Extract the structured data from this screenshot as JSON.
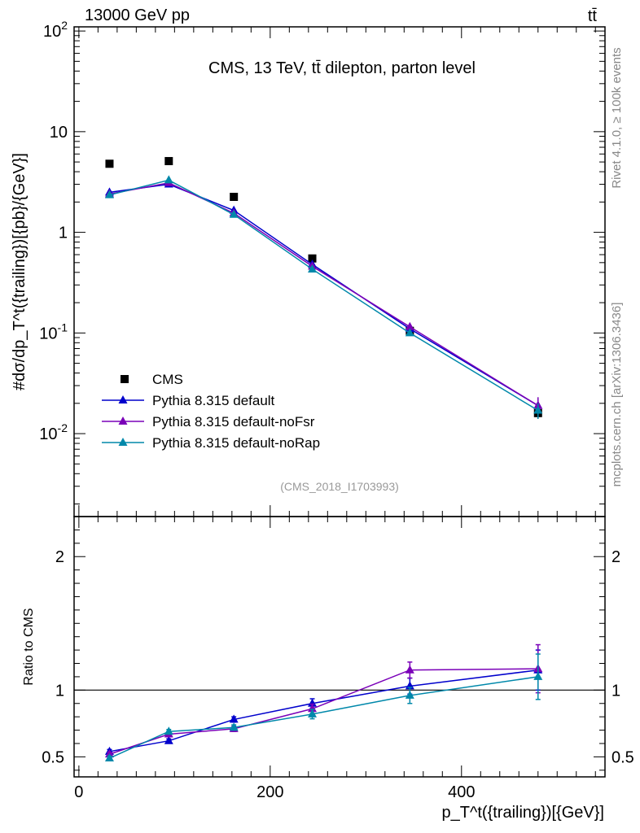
{
  "header": {
    "energy_label": "13000 GeV pp",
    "process_label": "tt̄"
  },
  "side_labels": {
    "rivet": "Rivet 4.1.0, ≥ 100k events",
    "mcplots": "mcplots.cern.ch [arXiv:1306.3436]"
  },
  "chart_data": [
    {
      "type": "scatter",
      "title": "CMS, 13 TeV, tt̄ dilepton, parton level",
      "analysis_tag": "(CMS_2018_I1703993)",
      "xlabel": "p_T^t({trailing})[{GeV}]",
      "ylabel": "#dσ/dp_T^t({trailing})[{pb}/{GeV}]",
      "y_scale": "log",
      "ylim": [
        0.0015,
        110
      ],
      "y_ticks": [
        {
          "value": 100,
          "label": "10^2"
        },
        {
          "value": 10,
          "label": "10"
        },
        {
          "value": 1,
          "label": "1"
        },
        {
          "value": 0.1,
          "label": "10^-1"
        },
        {
          "value": 0.01,
          "label": "10^-2"
        }
      ],
      "legend_position": "bottom-left",
      "series": [
        {
          "name": "CMS",
          "color": "#000000",
          "marker": "square",
          "x": [
            32,
            94,
            162,
            244,
            346,
            480
          ],
          "y": [
            4.8,
            5.1,
            2.25,
            0.55,
            0.105,
            0.016
          ],
          "err": [
            0.15,
            0.15,
            0.07,
            0.02,
            0.006,
            0.002
          ]
        },
        {
          "name": "Pythia 8.315 default",
          "color": "#0000cc",
          "marker": "triangle",
          "x": [
            32,
            94,
            162,
            244,
            346,
            480
          ],
          "y": [
            2.5,
            3.0,
            1.65,
            0.48,
            0.11,
            0.019
          ],
          "err": [
            0.05,
            0.05,
            0.04,
            0.01,
            0.004,
            0.003
          ]
        },
        {
          "name": "Pythia 8.315 default-noFsr",
          "color": "#7a00b8",
          "marker": "triangle",
          "x": [
            32,
            94,
            162,
            244,
            346,
            480
          ],
          "y": [
            2.4,
            3.1,
            1.55,
            0.46,
            0.115,
            0.019
          ],
          "err": [
            0.05,
            0.05,
            0.04,
            0.01,
            0.004,
            0.004
          ]
        },
        {
          "name": "Pythia 8.315 default-noRap",
          "color": "#0088aa",
          "marker": "triangle",
          "x": [
            32,
            94,
            162,
            244,
            346,
            480
          ],
          "y": [
            2.35,
            3.3,
            1.5,
            0.43,
            0.1,
            0.017
          ],
          "err": [
            0.05,
            0.05,
            0.04,
            0.01,
            0.004,
            0.003
          ]
        }
      ]
    },
    {
      "type": "line",
      "title": "",
      "xlabel": "p_T^t({trailing})[{GeV}]",
      "ylabel": "Ratio to CMS",
      "xlim": [
        -5,
        550
      ],
      "ylim": [
        0.35,
        2.3
      ],
      "x_ticks": [
        0,
        200,
        400
      ],
      "y_ticks": [
        0.5,
        1,
        2
      ],
      "reference_line": 1,
      "series": [
        {
          "name": "Pythia 8.315 default",
          "color": "#0000cc",
          "x": [
            32,
            94,
            162,
            244,
            346,
            480
          ],
          "y": [
            0.54,
            0.62,
            0.78,
            0.9,
            1.03,
            1.15
          ],
          "err": [
            0.015,
            0.015,
            0.02,
            0.035,
            0.06,
            0.15
          ]
        },
        {
          "name": "Pythia 8.315 default-noFsr",
          "color": "#7a00b8",
          "x": [
            32,
            94,
            162,
            244,
            346,
            480
          ],
          "y": [
            0.52,
            0.67,
            0.71,
            0.86,
            1.15,
            1.16
          ],
          "err": [
            0.015,
            0.015,
            0.02,
            0.035,
            0.06,
            0.18
          ]
        },
        {
          "name": "Pythia 8.315 default-noRap",
          "color": "#0088aa",
          "x": [
            32,
            94,
            162,
            244,
            346,
            480
          ],
          "y": [
            0.49,
            0.69,
            0.72,
            0.82,
            0.96,
            1.1
          ],
          "err": [
            0.015,
            0.015,
            0.02,
            0.035,
            0.06,
            0.17
          ]
        }
      ]
    }
  ]
}
